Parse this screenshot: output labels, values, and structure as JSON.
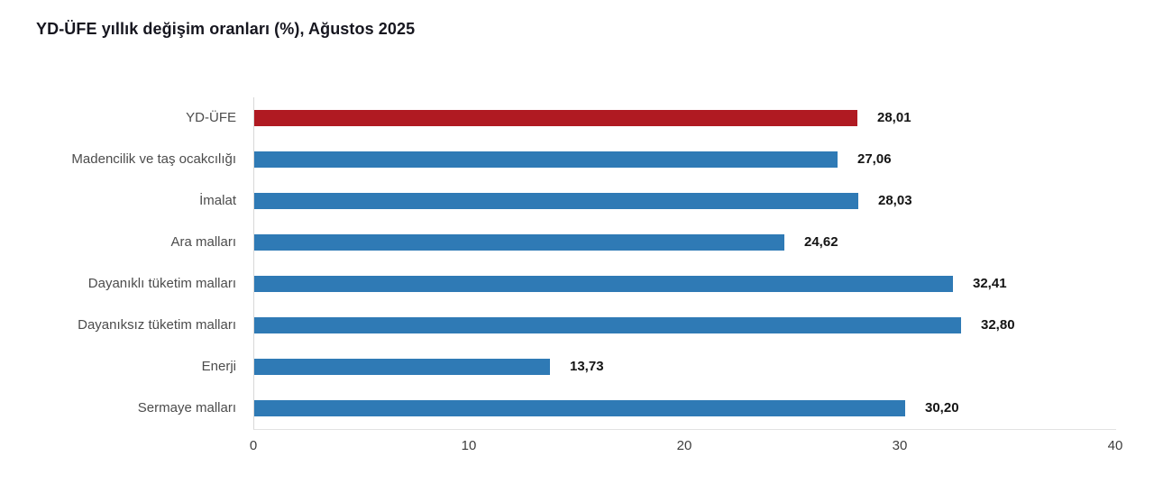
{
  "chart_data": {
    "type": "bar",
    "orientation": "horizontal",
    "title": "YD-ÜFE yıllık değişim oranları (%), Ağustos 2025",
    "categories": [
      "YD-ÜFE",
      "Madencilik ve taş ocakcılığı",
      "İmalat",
      "Ara malları",
      "Dayanıklı tüketim malları",
      "Dayanıksız tüketim malları",
      "Enerji",
      "Sermaye malları"
    ],
    "values": [
      28.01,
      27.06,
      28.03,
      24.62,
      32.41,
      32.8,
      13.73,
      30.2
    ],
    "value_labels": [
      "28,01",
      "27,06",
      "28,03",
      "24,62",
      "32,41",
      "32,80",
      "13,73",
      "30,20"
    ],
    "xlabel": "",
    "ylabel": "",
    "xlim": [
      0,
      40
    ],
    "x_ticks": [
      0,
      10,
      20,
      30,
      40
    ],
    "x_tick_labels": [
      "0",
      "10",
      "20",
      "30",
      "40"
    ],
    "grid": false,
    "legend": false,
    "highlight_index": 0,
    "colors": {
      "highlight_bar": "#b01a22",
      "default_bar": "#2f7ab5",
      "value_label": "#141414",
      "category_label": "#4c4c4c",
      "axis_line": "#d8d8d8",
      "baseline": "#e2e2e2",
      "title": "#16161f",
      "background": "#ffffff"
    }
  }
}
